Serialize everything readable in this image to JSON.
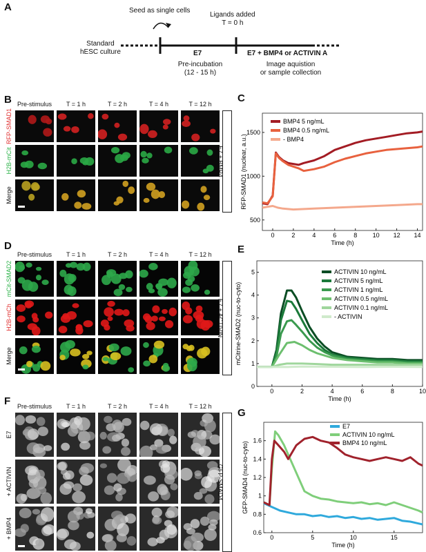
{
  "panelA": {
    "label": "A",
    "standard_culture": [
      "Standard",
      "hESC culture"
    ],
    "seed": "Seed as single cells",
    "ligands": "Ligands added",
    "t0": "T = 0 h",
    "e7": "E7",
    "preinc": [
      "Pre-incubation",
      "(12 - 15 h)"
    ],
    "e7_ligands": "E7 + BMP4 or ACTIVIN A",
    "image_acq": [
      "Image aquistion",
      "or sample collection"
    ]
  },
  "time_headers": [
    "Pre-stimulus",
    "T = 1 h",
    "T = 2 h",
    "T = 4 h",
    "T = 12 h"
  ],
  "panelB": {
    "label": "B",
    "rows": [
      "RFP-SMAD1",
      "H2B-mCit",
      "Merge"
    ],
    "row_colors": [
      "#e03030",
      "#2db34a",
      "#111111"
    ],
    "condition": "E7 + BMP4",
    "cells": [
      [
        "#b01818",
        "#d22020",
        "#d22020",
        "#d22020",
        "#d22020"
      ],
      [
        "#2aa845",
        "#2aa845",
        "#2aa845",
        "#2aa845",
        "#2aa845"
      ],
      [
        "#b8a020",
        "#d0a020",
        "#d0a020",
        "#d0a020",
        "#d0a020"
      ]
    ]
  },
  "panelD": {
    "label": "D",
    "rows": [
      "mCit-SMAD2",
      "H2B-mCh",
      "Merge"
    ],
    "row_colors": [
      "#2db34a",
      "#e03030",
      "#111111"
    ],
    "condition": "E7 + ACTIVIN"
  },
  "panelF": {
    "label": "F",
    "rows": [
      "E7",
      "+ ACTIVIN",
      "+ BMP4"
    ],
    "condition": "GFP-SMAD4"
  },
  "chart_data": [
    {
      "panel": "C",
      "type": "line",
      "ylabel": "RFP-SMAD1 (nuclear, a.u.)",
      "xlabel": "Time (h)",
      "xlim": [
        -1,
        14.5
      ],
      "ylim": [
        380,
        1720
      ],
      "xticks": [
        0,
        2,
        4,
        6,
        8,
        10,
        12,
        14
      ],
      "yticks": [
        500,
        1000,
        1500
      ],
      "legend_position": "top-left",
      "series": [
        {
          "name": "BMP4 5 ng/mL",
          "color": "#a31c24",
          "x": [
            -1,
            -0.5,
            0,
            0.3,
            0.6,
            1,
            1.5,
            2,
            2.5,
            3,
            4,
            5,
            6,
            7,
            8,
            9,
            10,
            11,
            12,
            13,
            14,
            14.5
          ],
          "y": [
            690,
            680,
            780,
            1270,
            1220,
            1180,
            1150,
            1140,
            1130,
            1150,
            1180,
            1230,
            1300,
            1340,
            1380,
            1410,
            1430,
            1450,
            1470,
            1490,
            1500,
            1510
          ]
        },
        {
          "name": "BMP4 0.5 ng/mL",
          "color": "#e8613e",
          "x": [
            -1,
            -0.5,
            0,
            0.3,
            0.6,
            1,
            1.5,
            2,
            2.5,
            3,
            4,
            5,
            6,
            7,
            8,
            9,
            10,
            11,
            12,
            13,
            14,
            14.5
          ],
          "y": [
            700,
            690,
            770,
            1260,
            1210,
            1170,
            1130,
            1110,
            1090,
            1060,
            1080,
            1110,
            1160,
            1200,
            1230,
            1260,
            1280,
            1300,
            1310,
            1320,
            1330,
            1340
          ]
        },
        {
          "name": "- BMP4",
          "color": "#f4a88c",
          "x": [
            -1,
            -0.5,
            0,
            0.5,
            1,
            2,
            4,
            6,
            8,
            10,
            12,
            14,
            14.5
          ],
          "y": [
            640,
            650,
            660,
            640,
            630,
            620,
            630,
            640,
            650,
            660,
            670,
            680,
            680
          ]
        }
      ]
    },
    {
      "panel": "E",
      "type": "line",
      "ylabel": "mCitrine-SMAD2 (nuc-to-cyto)",
      "xlabel": "Time (h)",
      "xlim": [
        -1,
        10
      ],
      "ylim": [
        0,
        5.5
      ],
      "xticks": [
        0,
        2,
        4,
        6,
        8,
        10
      ],
      "yticks": [
        0,
        1,
        2,
        3,
        4,
        5
      ],
      "legend_position": "top-right",
      "series": [
        {
          "name": "ACTIVIN 10 ng/mL",
          "color": "#0b4d24",
          "x": [
            -1,
            0,
            0.3,
            0.6,
            1,
            1.3,
            1.6,
            2,
            2.5,
            3,
            3.5,
            4,
            5,
            6,
            7,
            8,
            9,
            10
          ],
          "y": [
            0.85,
            0.85,
            1.6,
            3.2,
            4.2,
            4.2,
            3.9,
            3.3,
            2.6,
            2.1,
            1.75,
            1.5,
            1.3,
            1.25,
            1.2,
            1.2,
            1.15,
            1.15
          ]
        },
        {
          "name": "ACTIVIN 5 ng/mL",
          "color": "#1b7a3a",
          "x": [
            -1,
            0,
            0.3,
            0.6,
            1,
            1.3,
            1.6,
            2,
            2.5,
            3,
            3.5,
            4,
            5,
            6,
            7,
            8,
            9,
            10
          ],
          "y": [
            0.85,
            0.85,
            1.5,
            2.9,
            3.75,
            3.7,
            3.4,
            2.9,
            2.3,
            1.9,
            1.6,
            1.4,
            1.25,
            1.2,
            1.15,
            1.15,
            1.1,
            1.1
          ]
        },
        {
          "name": "ACTIVIN 1 ng/mL",
          "color": "#3a9a4e",
          "x": [
            -1,
            0,
            0.3,
            0.6,
            1,
            1.3,
            1.6,
            2,
            2.5,
            3,
            3.5,
            4,
            5,
            6,
            7,
            8,
            9,
            10
          ],
          "y": [
            0.85,
            0.85,
            1.3,
            2.3,
            2.85,
            2.9,
            2.7,
            2.4,
            2.0,
            1.7,
            1.5,
            1.35,
            1.2,
            1.15,
            1.1,
            1.1,
            1.05,
            1.05
          ]
        },
        {
          "name": "ACTIVIN 0.5 ng/mL",
          "color": "#6cbf6e",
          "x": [
            -1,
            0,
            0.5,
            1,
            1.5,
            2,
            2.5,
            3,
            4,
            5,
            6,
            7,
            8,
            9,
            10
          ],
          "y": [
            0.85,
            0.85,
            1.4,
            1.9,
            1.95,
            1.8,
            1.6,
            1.45,
            1.25,
            1.15,
            1.1,
            1.05,
            1.05,
            1.0,
            1.0
          ]
        },
        {
          "name": "ACTIVIN 0.1 ng/mL",
          "color": "#9fd69c",
          "x": [
            -1,
            0,
            0.5,
            1,
            2,
            3,
            4,
            6,
            8,
            10
          ],
          "y": [
            0.85,
            0.85,
            0.95,
            1.0,
            1.0,
            0.98,
            0.95,
            0.95,
            0.95,
            0.95
          ]
        },
        {
          "name": "- ACTIVIN",
          "color": "#cfeacb",
          "x": [
            -1,
            0,
            1,
            2,
            4,
            6,
            8,
            10
          ],
          "y": [
            0.85,
            0.85,
            0.85,
            0.87,
            0.86,
            0.85,
            0.86,
            0.85
          ]
        }
      ]
    },
    {
      "panel": "G",
      "type": "line",
      "ylabel": "GFP-SMAD4 (nuc-to-cyto)",
      "xlabel": "Time (h)",
      "xlim": [
        -1,
        18.5
      ],
      "ylim": [
        0.6,
        1.8
      ],
      "xticks": [
        0,
        5,
        10,
        15
      ],
      "yticks": [
        0.6,
        0.8,
        1,
        1.2,
        1.4,
        1.6
      ],
      "legend_position": "top-right",
      "series": [
        {
          "name": "E7",
          "color": "#2fa9dc",
          "x": [
            -1,
            0,
            1,
            2,
            3,
            4,
            5,
            6,
            7,
            8,
            9,
            10,
            11,
            12,
            13,
            14,
            15,
            16,
            17,
            18,
            18.5
          ],
          "y": [
            0.92,
            0.88,
            0.84,
            0.82,
            0.8,
            0.8,
            0.78,
            0.79,
            0.77,
            0.78,
            0.76,
            0.77,
            0.75,
            0.76,
            0.74,
            0.75,
            0.76,
            0.73,
            0.72,
            0.7,
            0.69
          ]
        },
        {
          "name": "ACTIVIN 10 ng/mL",
          "color": "#7fce7a",
          "x": [
            -1,
            -0.3,
            0,
            0.4,
            0.8,
            1.5,
            2,
            3,
            4,
            5,
            6,
            7,
            8,
            9,
            10,
            11,
            12,
            13,
            14,
            15,
            16,
            17,
            18,
            18.5
          ],
          "y": [
            0.93,
            0.9,
            1.3,
            1.7,
            1.66,
            1.55,
            1.45,
            1.25,
            1.05,
            1.0,
            0.97,
            0.96,
            0.94,
            0.93,
            0.92,
            0.93,
            0.91,
            0.92,
            0.9,
            0.93,
            0.9,
            0.87,
            0.84,
            0.82
          ]
        },
        {
          "name": "BMP4 10 ng/mL",
          "color": "#a0222c",
          "x": [
            -1,
            -0.3,
            0,
            0.3,
            0.8,
            1.5,
            2,
            3,
            4,
            5,
            6,
            7,
            8,
            9,
            10,
            11,
            12,
            13,
            14,
            15,
            16,
            17,
            18,
            18.5
          ],
          "y": [
            0.93,
            0.9,
            1.4,
            1.6,
            1.55,
            1.48,
            1.4,
            1.55,
            1.62,
            1.64,
            1.6,
            1.58,
            1.52,
            1.45,
            1.42,
            1.4,
            1.38,
            1.4,
            1.42,
            1.4,
            1.38,
            1.42,
            1.35,
            1.33
          ]
        }
      ]
    }
  ]
}
